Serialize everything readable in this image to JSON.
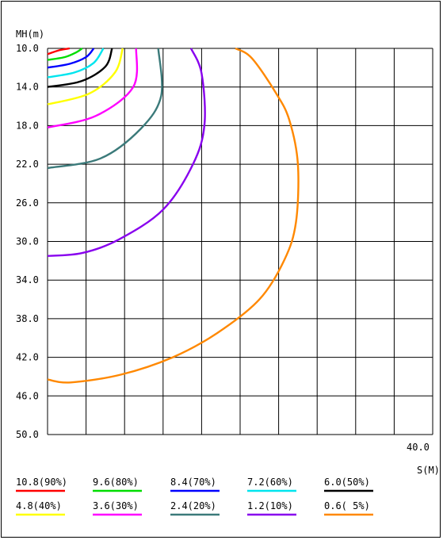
{
  "chart_data": {
    "type": "contour",
    "ylabel": "MH(m)",
    "xlabel": "S(M)",
    "x_tick_labels": [
      {
        "x": 40,
        "label": "40.0"
      }
    ],
    "xlim": [
      0,
      40
    ],
    "ylim": [
      10,
      50
    ],
    "y_ticks": [
      {
        "y": 10,
        "label": "10.0"
      },
      {
        "y": 14,
        "label": "14.0"
      },
      {
        "y": 18,
        "label": "18.0"
      },
      {
        "y": 22,
        "label": "22.0"
      },
      {
        "y": 26,
        "label": "26.0"
      },
      {
        "y": 30,
        "label": "30.0"
      },
      {
        "y": 34,
        "label": "34.0"
      },
      {
        "y": 38,
        "label": "38.0"
      },
      {
        "y": 42,
        "label": "42.0"
      },
      {
        "y": 46,
        "label": "46.0"
      },
      {
        "y": 50,
        "label": "50.0"
      }
    ],
    "grid": true,
    "series": [
      {
        "name": "10.8(90%)",
        "color": "#ff0000",
        "points": [
          [
            0,
            10.6
          ],
          [
            1.2,
            10.2
          ],
          [
            2.3,
            10.0
          ]
        ]
      },
      {
        "name": "9.6(80%)",
        "color": "#00dd00",
        "points": [
          [
            0,
            11.2
          ],
          [
            1.8,
            10.9
          ],
          [
            3.0,
            10.4
          ],
          [
            3.6,
            10.0
          ]
        ]
      },
      {
        "name": "8.4(70%)",
        "color": "#0000ff",
        "points": [
          [
            0,
            12.0
          ],
          [
            2.3,
            11.6
          ],
          [
            4.0,
            10.9
          ],
          [
            4.8,
            10.0
          ]
        ]
      },
      {
        "name": "7.2(60%)",
        "color": "#00e5ee",
        "points": [
          [
            0,
            13.0
          ],
          [
            2.8,
            12.5
          ],
          [
            4.8,
            11.5
          ],
          [
            5.8,
            10.0
          ]
        ]
      },
      {
        "name": "6.0(50%)",
        "color": "#000000",
        "points": [
          [
            0,
            14.0
          ],
          [
            3.5,
            13.4
          ],
          [
            6.0,
            11.9
          ],
          [
            6.7,
            10.0
          ]
        ]
      },
      {
        "name": "4.8(40%)",
        "color": "#ffff00",
        "points": [
          [
            0,
            15.8
          ],
          [
            4.3,
            14.7
          ],
          [
            7.0,
            12.5
          ],
          [
            7.8,
            10.0
          ]
        ]
      },
      {
        "name": "3.6(30%)",
        "color": "#ff00ff",
        "points": [
          [
            0,
            18.2
          ],
          [
            5.0,
            17.0
          ],
          [
            8.9,
            14.0
          ],
          [
            9.2,
            10.0
          ]
        ]
      },
      {
        "name": "2.4(20%)",
        "color": "#3b7a7a",
        "points": [
          [
            0,
            22.4
          ],
          [
            5.5,
            21.4
          ],
          [
            9.7,
            18.3
          ],
          [
            11.8,
            14.9
          ],
          [
            11.5,
            10.0
          ]
        ]
      },
      {
        "name": "1.2(10%)",
        "color": "#8800ee",
        "points": [
          [
            0,
            31.5
          ],
          [
            3.6,
            31.2
          ],
          [
            7.4,
            29.8
          ],
          [
            12.0,
            26.7
          ],
          [
            15.1,
            22.0
          ],
          [
            16.3,
            17.9
          ],
          [
            16.0,
            12.6
          ],
          [
            14.9,
            10.0
          ]
        ]
      },
      {
        "name": "0.6( 5%)",
        "color": "#ff8800",
        "points": [
          [
            0,
            44.3
          ],
          [
            2.4,
            44.6
          ],
          [
            7.6,
            43.8
          ],
          [
            13.0,
            42.0
          ],
          [
            17.6,
            39.5
          ],
          [
            22.0,
            36.0
          ],
          [
            24.6,
            31.9
          ],
          [
            25.8,
            28.0
          ],
          [
            26.0,
            22.0
          ],
          [
            25.1,
            17.4
          ],
          [
            23.7,
            14.6
          ],
          [
            21.2,
            11.0
          ],
          [
            19.5,
            10.0
          ]
        ]
      }
    ]
  }
}
